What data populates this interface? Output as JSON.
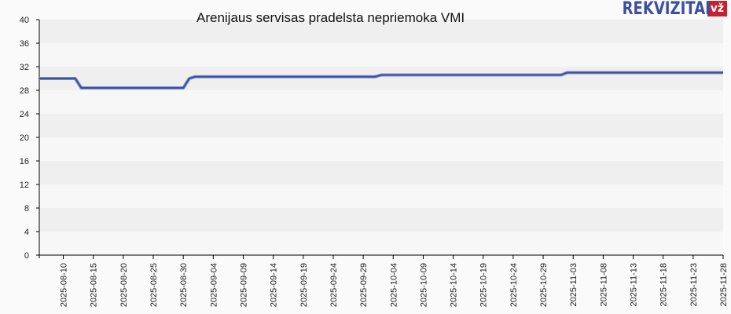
{
  "header": {
    "title": "Arenijaus servisas pradelsta nepriemoka VMI",
    "logo_text": "REKVIZITAI",
    "logo_badge": "vž"
  },
  "colors": {
    "line": "#3b4fa0",
    "band_dark": "#efefef",
    "band_light": "#f7f7f7",
    "background": "#fafafa",
    "axis": "#000000",
    "logo_blue": "#3b4fa0",
    "logo_red": "#c8202f"
  },
  "chart_data": {
    "type": "line",
    "title": "Arenijaus servisas pradelsta nepriemoka VMI",
    "xlabel": "",
    "ylabel": "",
    "ylim": [
      0,
      40
    ],
    "yticks": [
      0,
      4,
      8,
      12,
      16,
      20,
      24,
      28,
      32,
      36,
      40
    ],
    "xticks": [
      "2025-08-10",
      "2025-08-15",
      "2025-08-20",
      "2025-08-25",
      "2025-08-30",
      "2025-09-04",
      "2025-09-09",
      "2025-09-14",
      "2025-09-19",
      "2025-09-24",
      "2025-09-29",
      "2025-10-04",
      "2025-10-09",
      "2025-10-14",
      "2025-10-19",
      "2025-10-24",
      "2025-10-29",
      "2025-11-03",
      "2025-11-08",
      "2025-11-13",
      "2025-11-18",
      "2025-11-23",
      "2025-11-28"
    ],
    "x_range": [
      "2025-08-06",
      "2025-11-28"
    ],
    "grid": "alternating horizontal bands",
    "legend": "none",
    "series": [
      {
        "name": "Arenijaus servisas pradelsta nepriemoka VMI",
        "points": [
          {
            "x": "2025-08-06",
            "y": 30.0
          },
          {
            "x": "2025-08-12",
            "y": 30.0
          },
          {
            "x": "2025-08-13",
            "y": 28.4
          },
          {
            "x": "2025-08-30",
            "y": 28.4
          },
          {
            "x": "2025-08-31",
            "y": 30.0
          },
          {
            "x": "2025-09-01",
            "y": 30.3
          },
          {
            "x": "2025-10-01",
            "y": 30.3
          },
          {
            "x": "2025-10-02",
            "y": 30.6
          },
          {
            "x": "2025-11-01",
            "y": 30.6
          },
          {
            "x": "2025-11-02",
            "y": 31.0
          },
          {
            "x": "2025-11-28",
            "y": 31.0
          }
        ]
      }
    ]
  }
}
